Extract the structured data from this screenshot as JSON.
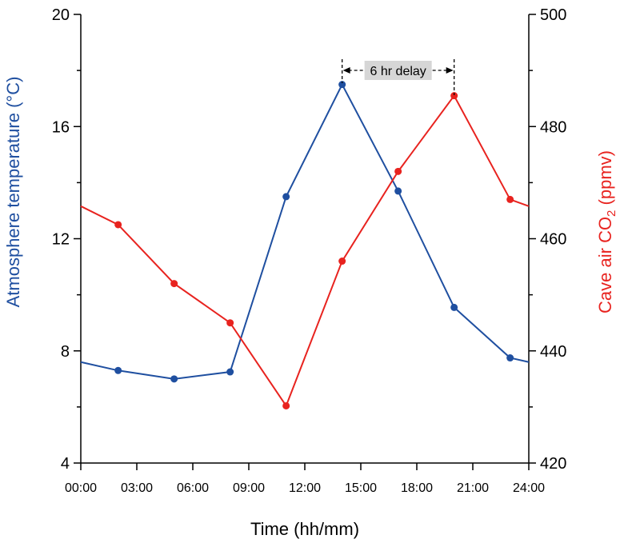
{
  "chart_data": {
    "type": "line",
    "x_labels": [
      "00:00",
      "03:00",
      "06:00",
      "09:00",
      "12:00",
      "15:00",
      "18:00",
      "21:00",
      "24:00"
    ],
    "xlabel": "Time (hh/mm)",
    "ylabel_left": "Atmosphere temperature (°C)",
    "ylabel_right_prefix": "Cave air CO",
    "ylabel_right_sub": "2",
    "ylabel_right_suffix": " (ppmv)",
    "xlim": [
      0,
      24
    ],
    "ylim_left": [
      4,
      20
    ],
    "yticks_left": [
      "4",
      "8",
      "12",
      "16",
      "20"
    ],
    "ylim_right": [
      420,
      500
    ],
    "yticks_right": [
      "420",
      "440",
      "460",
      "480",
      "500"
    ],
    "annotation": {
      "text": "6 hr delay",
      "from_hour": 14,
      "to_hour": 20
    },
    "series": [
      {
        "name": "Atmosphere temperature",
        "axis": "left",
        "color": "#1f4fa0",
        "line_x": [
          0,
          2,
          5,
          8,
          11,
          14,
          17,
          20,
          23,
          24
        ],
        "line_y": [
          7.6,
          7.3,
          7.0,
          7.25,
          13.5,
          17.5,
          13.7,
          9.55,
          7.75,
          7.6
        ],
        "marker_x": [
          2,
          5,
          8,
          11,
          14,
          17,
          20,
          23
        ],
        "marker_y": [
          7.3,
          7.0,
          7.25,
          13.5,
          17.5,
          13.7,
          9.55,
          7.75
        ]
      },
      {
        "name": "Cave air CO2",
        "axis": "right",
        "color": "#e8231f",
        "line_x": [
          0,
          2,
          5,
          8,
          11,
          14,
          17,
          20,
          23,
          24
        ],
        "line_y": [
          465.8,
          462.5,
          452.0,
          445.0,
          430.2,
          456.0,
          472.0,
          485.5,
          467.0,
          465.8
        ],
        "marker_x": [
          2,
          5,
          8,
          11,
          14,
          17,
          20,
          23
        ],
        "marker_y": [
          462.5,
          452.0,
          445.0,
          430.2,
          456.0,
          472.0,
          485.5,
          467.0
        ]
      }
    ]
  }
}
